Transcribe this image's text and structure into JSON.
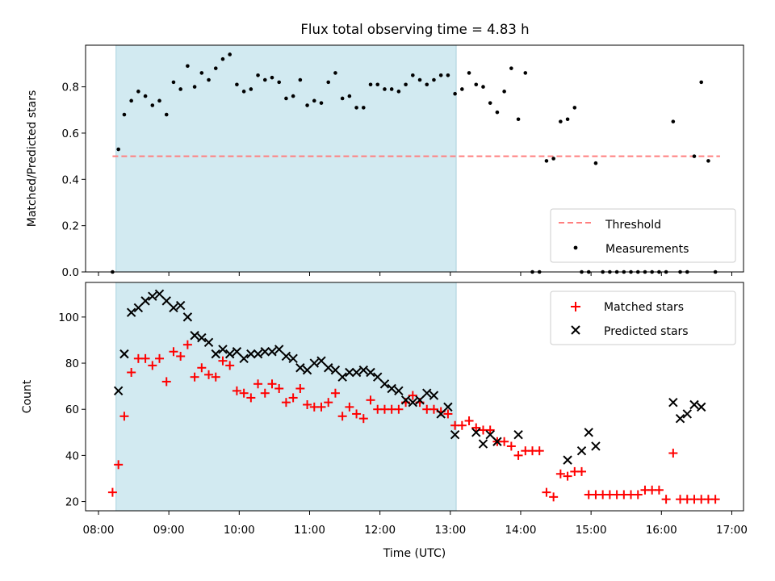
{
  "chart_data": [
    {
      "type": "scatter",
      "title": "Flux total observing time = 4.83 h",
      "xlabel": "",
      "ylabel": "Matched/Predicted stars",
      "xlim": [
        "07:49",
        "17:10"
      ],
      "ylim": [
        0,
        0.98
      ],
      "yticks": [
        0.0,
        0.2,
        0.4,
        0.6,
        0.8
      ],
      "ytick_labels": [
        "0.0",
        "0.2",
        "0.4",
        "0.6",
        "0.8"
      ],
      "observing_window": [
        "08:15",
        "13:05"
      ],
      "legend": {
        "loc": "lower right",
        "entries": [
          "Threshold",
          "Measurements"
        ]
      },
      "series": [
        {
          "name": "Threshold",
          "style": "dashed",
          "color": "#ff7f7f",
          "x": [
            "08:12",
            "16:50"
          ],
          "y": [
            0.5,
            0.5
          ]
        },
        {
          "name": "Measurements",
          "style": "dot",
          "color": "#000000",
          "x": [
            "08:12",
            "08:17",
            "08:22",
            "08:28",
            "08:34",
            "08:40",
            "08:46",
            "08:52",
            "08:58",
            "09:04",
            "09:10",
            "09:16",
            "09:22",
            "09:28",
            "09:34",
            "09:40",
            "09:46",
            "09:52",
            "09:58",
            "10:04",
            "10:10",
            "10:16",
            "10:22",
            "10:28",
            "10:34",
            "10:40",
            "10:46",
            "10:52",
            "10:58",
            "11:04",
            "11:10",
            "11:16",
            "11:22",
            "11:28",
            "11:34",
            "11:40",
            "11:46",
            "11:52",
            "11:58",
            "12:04",
            "12:10",
            "12:16",
            "12:22",
            "12:28",
            "12:34",
            "12:40",
            "12:46",
            "12:52",
            "12:58",
            "13:04",
            "13:10",
            "13:16",
            "13:22",
            "13:28",
            "13:34",
            "13:40",
            "13:46",
            "13:52",
            "13:58",
            "14:04",
            "14:10",
            "14:16",
            "14:22",
            "14:28",
            "14:34",
            "14:40",
            "14:46",
            "14:52",
            "14:58",
            "15:04",
            "15:10",
            "15:16",
            "15:22",
            "15:28",
            "15:34",
            "15:40",
            "15:46",
            "15:52",
            "15:58",
            "16:04",
            "16:10",
            "16:16",
            "16:22",
            "16:28",
            "16:34",
            "16:40",
            "16:46"
          ],
          "y": [
            0.0,
            0.53,
            0.68,
            0.74,
            0.78,
            0.76,
            0.72,
            0.74,
            0.68,
            0.82,
            0.79,
            0.89,
            0.8,
            0.86,
            0.83,
            0.88,
            0.92,
            0.94,
            0.81,
            0.78,
            0.79,
            0.85,
            0.83,
            0.84,
            0.82,
            0.75,
            0.76,
            0.83,
            0.72,
            0.74,
            0.73,
            0.82,
            0.86,
            0.75,
            0.76,
            0.71,
            0.71,
            0.81,
            0.81,
            0.79,
            0.79,
            0.78,
            0.81,
            0.85,
            0.83,
            0.81,
            0.83,
            0.85,
            0.85,
            0.77,
            0.79,
            0.86,
            0.81,
            0.8,
            0.73,
            0.69,
            0.78,
            0.88,
            0.66,
            0.86,
            0.0,
            0.0,
            0.48,
            0.49,
            0.65,
            0.66,
            0.71,
            0.0,
            0.0,
            0.47,
            0.0,
            0.0,
            0.0,
            0.0,
            0.0,
            0.0,
            0.0,
            0.0,
            0.0,
            0.0,
            0.65,
            0.0,
            0.0,
            0.5,
            0.82,
            0.48,
            0.0
          ]
        }
      ]
    },
    {
      "type": "scatter",
      "title": "",
      "xlabel": "Time (UTC)",
      "ylabel": "Count",
      "xlim": [
        "07:49",
        "17:10"
      ],
      "ylim": [
        16,
        115
      ],
      "xticks": [
        "08:00",
        "09:00",
        "10:00",
        "11:00",
        "12:00",
        "13:00",
        "14:00",
        "15:00",
        "16:00",
        "17:00"
      ],
      "yticks": [
        20,
        40,
        60,
        80,
        100
      ],
      "ytick_labels": [
        "20",
        "40",
        "60",
        "80",
        "100"
      ],
      "observing_window": [
        "08:15",
        "13:05"
      ],
      "legend": {
        "loc": "upper right",
        "entries": [
          "Matched stars",
          "Predicted stars"
        ]
      },
      "series": [
        {
          "name": "Matched stars",
          "marker": "+",
          "color": "#ff0000",
          "x": [
            "08:12",
            "08:17",
            "08:22",
            "08:28",
            "08:34",
            "08:40",
            "08:46",
            "08:52",
            "08:58",
            "09:04",
            "09:10",
            "09:16",
            "09:22",
            "09:28",
            "09:34",
            "09:40",
            "09:46",
            "09:52",
            "09:58",
            "10:04",
            "10:10",
            "10:16",
            "10:22",
            "10:28",
            "10:34",
            "10:40",
            "10:46",
            "10:52",
            "10:58",
            "11:04",
            "11:10",
            "11:16",
            "11:22",
            "11:28",
            "11:34",
            "11:40",
            "11:46",
            "11:52",
            "11:58",
            "12:04",
            "12:10",
            "12:16",
            "12:22",
            "12:28",
            "12:34",
            "12:40",
            "12:46",
            "12:52",
            "12:58",
            "13:04",
            "13:10",
            "13:16",
            "13:22",
            "13:28",
            "13:34",
            "13:40",
            "13:46",
            "13:52",
            "13:58",
            "14:04",
            "14:10",
            "14:16",
            "14:22",
            "14:28",
            "14:34",
            "14:40",
            "14:46",
            "14:52",
            "14:58",
            "15:04",
            "15:10",
            "15:16",
            "15:22",
            "15:28",
            "15:34",
            "15:40",
            "15:46",
            "15:52",
            "15:58",
            "16:04",
            "16:10",
            "16:16",
            "16:22",
            "16:28",
            "16:34",
            "16:40",
            "16:46"
          ],
          "y": [
            24,
            36,
            57,
            76,
            82,
            82,
            79,
            82,
            72,
            85,
            83,
            88,
            74,
            78,
            75,
            74,
            81,
            79,
            68,
            67,
            65,
            71,
            67,
            71,
            69,
            63,
            65,
            69,
            62,
            61,
            61,
            63,
            67,
            57,
            61,
            58,
            56,
            64,
            60,
            60,
            60,
            60,
            63,
            66,
            63,
            60,
            60,
            59,
            58,
            53,
            53,
            55,
            52,
            51,
            51,
            46,
            46,
            44,
            40,
            42,
            42,
            42,
            24,
            22,
            32,
            31,
            33,
            33,
            23,
            23,
            23,
            23,
            23,
            23,
            23,
            23,
            25,
            25,
            25,
            21,
            41,
            21,
            21,
            21,
            21,
            21,
            21
          ]
        },
        {
          "name": "Predicted stars",
          "marker": "x",
          "color": "#000000",
          "x": [
            "08:17",
            "08:22",
            "08:28",
            "08:34",
            "08:40",
            "08:46",
            "08:52",
            "08:58",
            "09:04",
            "09:10",
            "09:16",
            "09:22",
            "09:28",
            "09:34",
            "09:40",
            "09:46",
            "09:52",
            "09:58",
            "10:04",
            "10:10",
            "10:16",
            "10:22",
            "10:28",
            "10:34",
            "10:40",
            "10:46",
            "10:52",
            "10:58",
            "11:04",
            "11:10",
            "11:16",
            "11:22",
            "11:28",
            "11:34",
            "11:40",
            "11:46",
            "11:52",
            "11:58",
            "12:04",
            "12:10",
            "12:16",
            "12:22",
            "12:28",
            "12:34",
            "12:40",
            "12:46",
            "12:52",
            "12:58",
            "13:04",
            "13:22",
            "13:28",
            "13:34",
            "13:40",
            "13:58",
            "14:40",
            "14:52",
            "14:58",
            "15:04",
            "16:10",
            "16:16",
            "16:22",
            "16:28",
            "16:34"
          ],
          "y": [
            68,
            84,
            102,
            104,
            107,
            109,
            110,
            107,
            104,
            105,
            100,
            92,
            91,
            89,
            84,
            86,
            84,
            85,
            82,
            84,
            84,
            85,
            85,
            86,
            83,
            82,
            78,
            77,
            80,
            81,
            78,
            77,
            74,
            76,
            76,
            77,
            76,
            74,
            71,
            69,
            68,
            64,
            63,
            64,
            67,
            66,
            58,
            61,
            49,
            50,
            45,
            49,
            46,
            49,
            38,
            42,
            50,
            44,
            63,
            56,
            58,
            62,
            61
          ]
        }
      ]
    }
  ]
}
